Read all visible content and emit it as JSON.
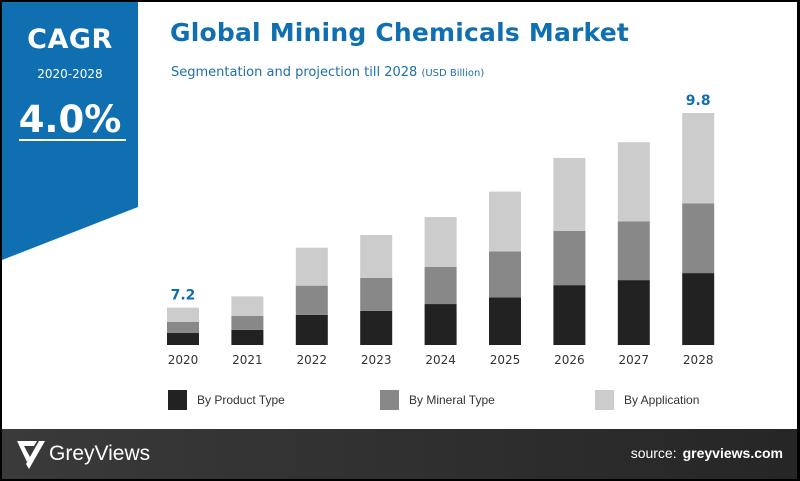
{
  "cagr": {
    "label": "CAGR",
    "period": "2020-2028",
    "value": "4.0%",
    "color": "#0f6fb1"
  },
  "header": {
    "title": "Global Mining Chemicals Market",
    "subtitle": "Segmentation and projection till 2028",
    "unit": "(USD Billion)"
  },
  "chart_data": {
    "type": "bar",
    "stacked": true,
    "title": "Global Mining Chemicals Market",
    "subtitle": "Segmentation and projection till 2028 (USD Billion)",
    "xlabel": "",
    "ylabel": "USD Billion",
    "grid": false,
    "categories": [
      "2020",
      "2021",
      "2022",
      "2023",
      "2024",
      "2025",
      "2026",
      "2027",
      "2028"
    ],
    "totals": [
      7.2,
      7.35,
      8.0,
      8.17,
      8.41,
      8.75,
      9.2,
      9.41,
      9.8
    ],
    "series": [
      {
        "name": "By Product Type",
        "color": "#222222",
        "share": [
          0.32,
          0.31,
          0.31,
          0.31,
          0.32,
          0.31,
          0.32,
          0.32,
          0.31
        ]
      },
      {
        "name": "By Mineral Type",
        "color": "#888888",
        "share": [
          0.3,
          0.29,
          0.3,
          0.3,
          0.29,
          0.3,
          0.29,
          0.29,
          0.3
        ]
      },
      {
        "name": "By Application",
        "color": "#cccccc",
        "share": [
          0.38,
          0.4,
          0.39,
          0.39,
          0.39,
          0.39,
          0.39,
          0.39,
          0.39
        ]
      }
    ],
    "data_labels": [
      {
        "category": "2020",
        "text": "7.2"
      },
      {
        "category": "2028",
        "text": "9.8"
      }
    ],
    "ylim": [
      6.7,
      9.8
    ],
    "legend_position": "bottom",
    "label_color": "#0f6fb1"
  },
  "legend": [
    {
      "label": "By Product Type",
      "color": "#222222"
    },
    {
      "label": "By Mineral Type",
      "color": "#888888"
    },
    {
      "label": "By Application",
      "color": "#cccccc"
    }
  ],
  "footer": {
    "brand": "GreyViews",
    "source_label": "source:",
    "source_site": "greyviews.com"
  }
}
